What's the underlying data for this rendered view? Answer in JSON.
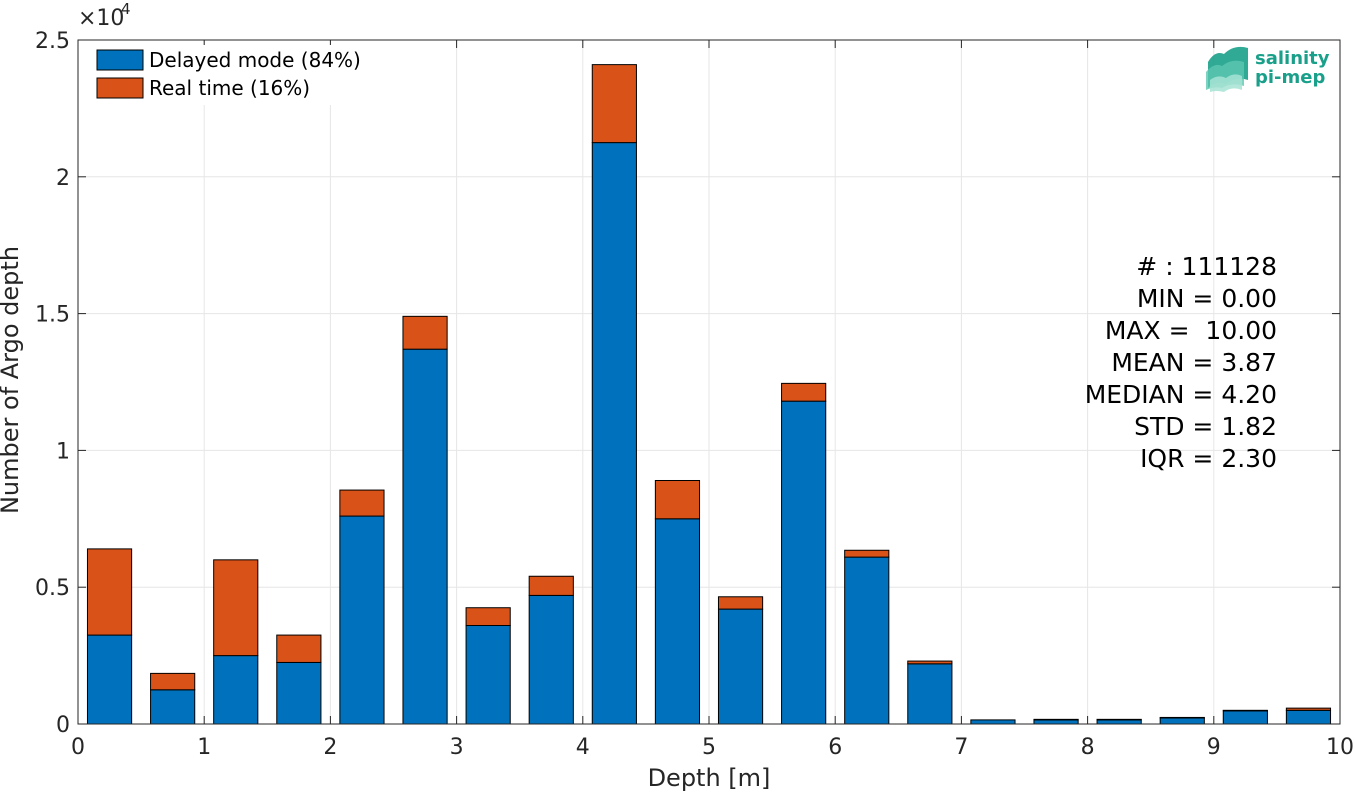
{
  "chart_data": {
    "type": "bar",
    "stacked": true,
    "xlabel": "Depth [m]",
    "ylabel": "Number of Argo depth",
    "y_exponent_label": "×10",
    "y_exponent_power": "4",
    "xlim": [
      0,
      10
    ],
    "ylim": [
      0,
      25000
    ],
    "x_ticks": [
      0,
      1,
      2,
      3,
      4,
      5,
      6,
      7,
      8,
      9,
      10
    ],
    "x_tick_labels": [
      "0",
      "1",
      "2",
      "3",
      "4",
      "5",
      "6",
      "7",
      "8",
      "9",
      "10"
    ],
    "y_ticks": [
      0,
      5000,
      10000,
      15000,
      20000,
      25000
    ],
    "y_tick_labels": [
      "0",
      "0.5",
      "1",
      "1.5",
      "2",
      "2.5"
    ],
    "grid": true,
    "legend_position": "top-left",
    "bar_width": 0.35,
    "bin_centers": [
      0.25,
      0.75,
      1.25,
      1.75,
      2.25,
      2.75,
      3.25,
      3.75,
      4.25,
      4.75,
      5.25,
      5.75,
      6.25,
      6.75,
      7.25,
      7.75,
      8.25,
      8.75,
      9.25,
      9.75
    ],
    "series": [
      {
        "name": "Delayed mode (84%)",
        "color": "#0072BD",
        "values": [
          3250,
          1250,
          2500,
          2250,
          7600,
          13700,
          3600,
          4700,
          21250,
          7500,
          4200,
          11800,
          6100,
          2200,
          150,
          150,
          150,
          220,
          480,
          500
        ]
      },
      {
        "name": "Real time (16%)",
        "color": "#D95319",
        "values": [
          3150,
          600,
          3500,
          1000,
          950,
          1200,
          650,
          700,
          2850,
          1400,
          450,
          650,
          250,
          100,
          0,
          20,
          20,
          20,
          20,
          80
        ]
      }
    ]
  },
  "stats": [
    "# : 111128",
    "MIN = 0.00",
    "MAX =  10.00",
    "MEAN = 3.87",
    "MEDIAN = 4.20",
    "STD = 1.82",
    "IQR = 2.30"
  ],
  "logo": {
    "line1": "salinity",
    "line2": "pi-mep",
    "color": "#1aa08a"
  }
}
